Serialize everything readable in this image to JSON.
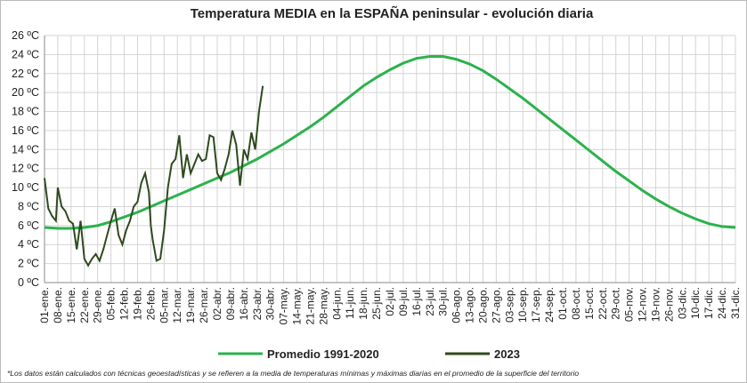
{
  "chart_data": {
    "type": "line",
    "title": "Temperatura MEDIA en la ESPAÑA peninsular - evolución diaria",
    "note": "*Los datos están calculados con técnicas geoestadísticas y se refieren a la media de temperaturas mínimas y máximas diarias en el promedio de la superficie del territorio",
    "xlim": [
      1,
      365
    ],
    "xticks": [
      {
        "value": 1,
        "label": "01-ene."
      },
      {
        "value": 8,
        "label": "08-ene."
      },
      {
        "value": 15,
        "label": "15-ene."
      },
      {
        "value": 22,
        "label": "22-ene."
      },
      {
        "value": 29,
        "label": "29-ene."
      },
      {
        "value": 36,
        "label": "05-feb."
      },
      {
        "value": 43,
        "label": "12-feb."
      },
      {
        "value": 50,
        "label": "19-feb."
      },
      {
        "value": 57,
        "label": "26-feb."
      },
      {
        "value": 64,
        "label": "05-mar."
      },
      {
        "value": 71,
        "label": "12-mar."
      },
      {
        "value": 78,
        "label": "19-mar."
      },
      {
        "value": 85,
        "label": "26-mar."
      },
      {
        "value": 92,
        "label": "02-abr."
      },
      {
        "value": 99,
        "label": "09-abr."
      },
      {
        "value": 106,
        "label": "16-abr."
      },
      {
        "value": 113,
        "label": "23-abr."
      },
      {
        "value": 120,
        "label": "30-abr."
      },
      {
        "value": 127,
        "label": "07-may."
      },
      {
        "value": 134,
        "label": "14-may."
      },
      {
        "value": 141,
        "label": "21-may."
      },
      {
        "value": 148,
        "label": "28-may."
      },
      {
        "value": 155,
        "label": "04-jun."
      },
      {
        "value": 162,
        "label": "11-jun."
      },
      {
        "value": 169,
        "label": "18-jun."
      },
      {
        "value": 176,
        "label": "25-jun."
      },
      {
        "value": 183,
        "label": "02-jul."
      },
      {
        "value": 190,
        "label": "09-jul."
      },
      {
        "value": 197,
        "label": "16-jul."
      },
      {
        "value": 204,
        "label": "23-jul."
      },
      {
        "value": 211,
        "label": "30-jul."
      },
      {
        "value": 218,
        "label": "06-ago."
      },
      {
        "value": 225,
        "label": "13-ago."
      },
      {
        "value": 232,
        "label": "20-ago."
      },
      {
        "value": 239,
        "label": "27-ago."
      },
      {
        "value": 246,
        "label": "03-sep."
      },
      {
        "value": 253,
        "label": "10-sep."
      },
      {
        "value": 260,
        "label": "17-sep."
      },
      {
        "value": 267,
        "label": "24-sep."
      },
      {
        "value": 274,
        "label": "01-oct."
      },
      {
        "value": 281,
        "label": "08-oct."
      },
      {
        "value": 288,
        "label": "15-oct."
      },
      {
        "value": 295,
        "label": "22-oct."
      },
      {
        "value": 302,
        "label": "29-oct."
      },
      {
        "value": 309,
        "label": "05-nov."
      },
      {
        "value": 316,
        "label": "12-nov."
      },
      {
        "value": 323,
        "label": "19-nov."
      },
      {
        "value": 330,
        "label": "26-nov."
      },
      {
        "value": 337,
        "label": "03-dic."
      },
      {
        "value": 344,
        "label": "10-dic."
      },
      {
        "value": 351,
        "label": "17-dic."
      },
      {
        "value": 358,
        "label": "24-dic."
      },
      {
        "value": 365,
        "label": "31-dic."
      }
    ],
    "ylim": [
      0,
      26
    ],
    "yticks": [
      {
        "value": 0,
        "label": "0 ºC"
      },
      {
        "value": 2,
        "label": "2 ºC"
      },
      {
        "value": 4,
        "label": "4 ºC"
      },
      {
        "value": 6,
        "label": "6 ºC"
      },
      {
        "value": 8,
        "label": "8 ºC"
      },
      {
        "value": 10,
        "label": "10 ºC"
      },
      {
        "value": 12,
        "label": "12 ºC"
      },
      {
        "value": 14,
        "label": "14 ºC"
      },
      {
        "value": 16,
        "label": "16 ºC"
      },
      {
        "value": 18,
        "label": "18 ºC"
      },
      {
        "value": 20,
        "label": "20 ºC"
      },
      {
        "value": 22,
        "label": "22 ºC"
      },
      {
        "value": 24,
        "label": "24 ºC"
      },
      {
        "value": 26,
        "label": "26 ºC"
      }
    ],
    "grid": true,
    "series": [
      {
        "name": "Promedio 1991-2020",
        "color": "#2bb24c",
        "x": [
          1,
          8,
          15,
          22,
          29,
          36,
          43,
          50,
          57,
          64,
          71,
          78,
          85,
          92,
          99,
          106,
          113,
          120,
          127,
          134,
          141,
          148,
          155,
          162,
          169,
          176,
          183,
          190,
          197,
          204,
          211,
          218,
          225,
          232,
          239,
          246,
          253,
          260,
          267,
          274,
          281,
          288,
          295,
          302,
          309,
          316,
          323,
          330,
          337,
          344,
          351,
          358,
          365
        ],
        "values": [
          5.8,
          5.7,
          5.7,
          5.8,
          6.0,
          6.4,
          6.9,
          7.4,
          8.0,
          8.6,
          9.2,
          9.8,
          10.4,
          11.0,
          11.6,
          12.3,
          13.0,
          13.8,
          14.6,
          15.5,
          16.4,
          17.4,
          18.5,
          19.6,
          20.7,
          21.6,
          22.4,
          23.1,
          23.6,
          23.8,
          23.8,
          23.5,
          23.0,
          22.3,
          21.4,
          20.4,
          19.4,
          18.3,
          17.2,
          16.1,
          15.0,
          13.9,
          12.8,
          11.7,
          10.7,
          9.7,
          8.8,
          8.0,
          7.3,
          6.7,
          6.2,
          5.9,
          5.8
        ]
      },
      {
        "name": "2023",
        "color": "#2f4a1e",
        "x": [
          1,
          3,
          5,
          7,
          8,
          10,
          12,
          14,
          16,
          18,
          20,
          22,
          24,
          26,
          28,
          30,
          32,
          34,
          36,
          38,
          40,
          42,
          44,
          46,
          48,
          50,
          52,
          54,
          56,
          57,
          58,
          60,
          62,
          64,
          66,
          68,
          70,
          72,
          74,
          76,
          78,
          80,
          82,
          84,
          86,
          88,
          90,
          92,
          94,
          96,
          98,
          100,
          102,
          104,
          106,
          108,
          110,
          112,
          114,
          116
        ],
        "values": [
          11.0,
          7.8,
          7.0,
          6.5,
          10.0,
          8.0,
          7.5,
          6.5,
          6.2,
          3.5,
          6.5,
          2.5,
          1.8,
          2.5,
          3.0,
          2.3,
          3.5,
          5.0,
          6.5,
          7.8,
          5.0,
          4.0,
          5.5,
          6.5,
          8.0,
          8.5,
          10.5,
          11.5,
          9.5,
          6.0,
          4.5,
          2.3,
          2.5,
          5.5,
          10.0,
          12.5,
          13.0,
          15.5,
          11.0,
          13.5,
          11.5,
          12.5,
          13.5,
          12.8,
          13.0,
          15.5,
          15.3,
          11.5,
          10.8,
          12.0,
          13.5,
          16.0,
          14.5,
          10.2,
          14.0,
          13.0,
          15.8,
          14.0,
          18.0,
          20.7
        ]
      }
    ]
  }
}
